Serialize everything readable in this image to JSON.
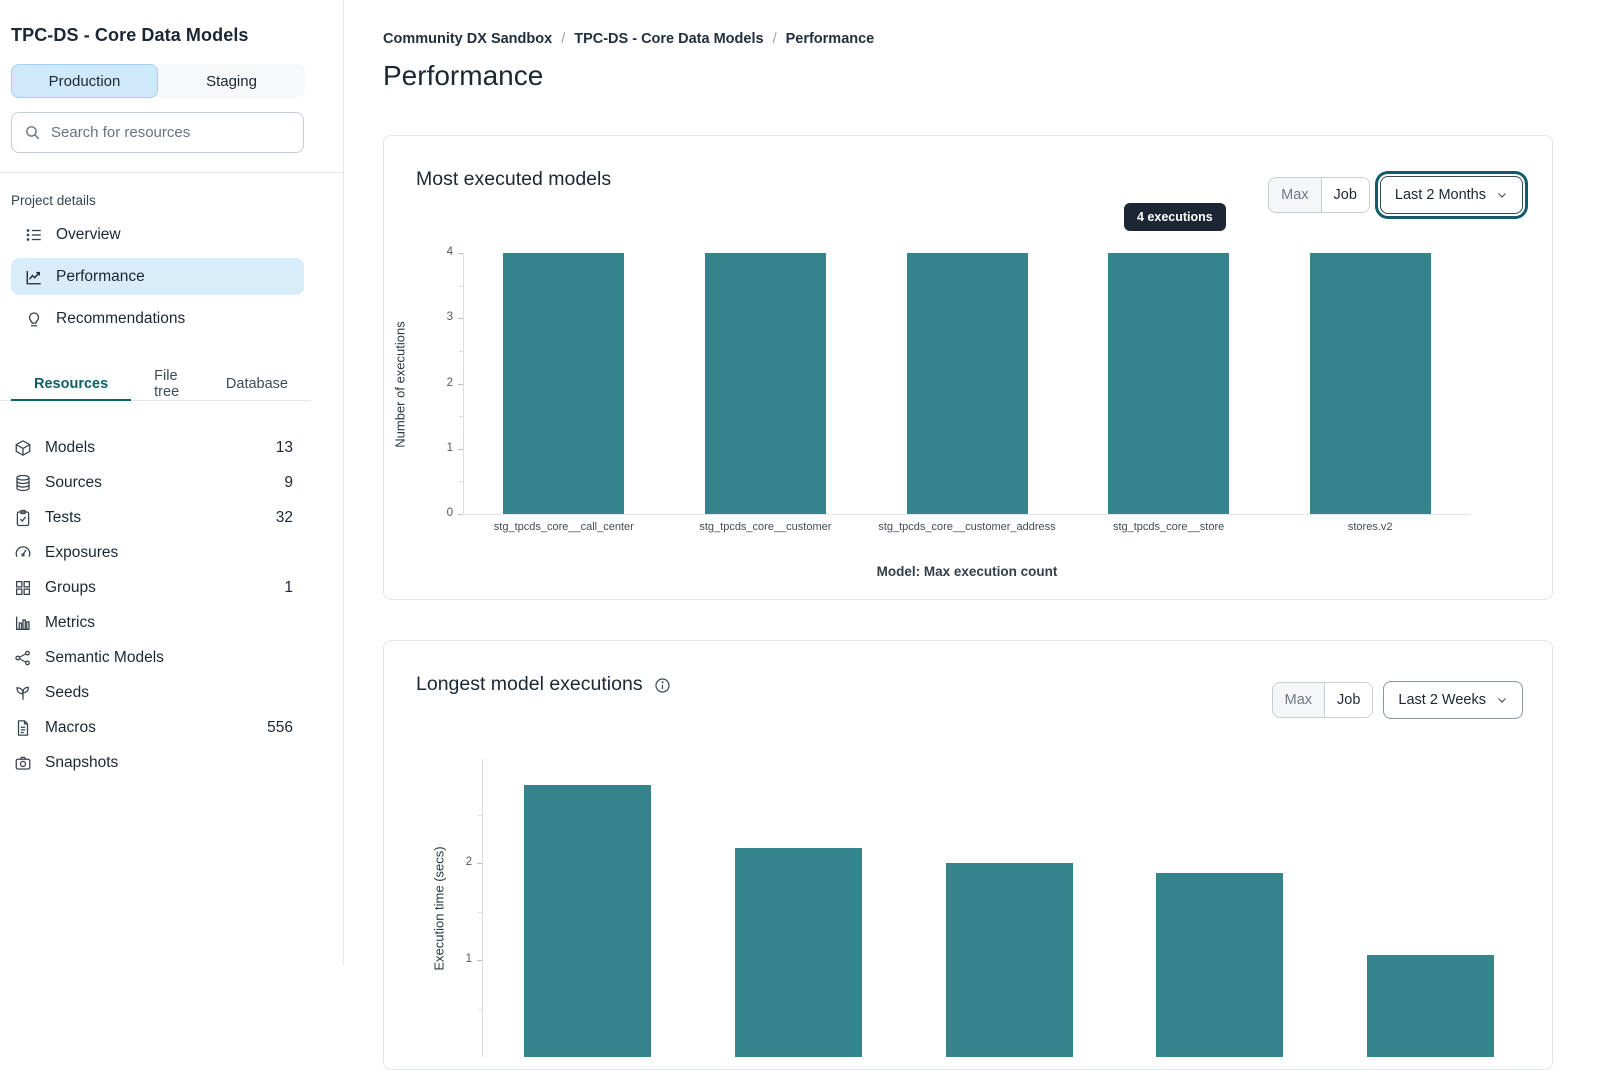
{
  "sidebar": {
    "title": "TPC-DS - Core Data Models",
    "env_tabs": [
      {
        "label": "Production",
        "active": true
      },
      {
        "label": "Staging",
        "active": false
      }
    ],
    "search_placeholder": "Search for resources",
    "section_label": "Project details",
    "nav_items": [
      {
        "label": "Overview",
        "icon": "list-icon",
        "active": false
      },
      {
        "label": "Performance",
        "icon": "chart-line-icon",
        "active": true
      },
      {
        "label": "Recommendations",
        "icon": "lightbulb-icon",
        "active": false
      }
    ],
    "resource_tabs": [
      {
        "label": "Resources",
        "active": true
      },
      {
        "label": "File tree",
        "active": false
      },
      {
        "label": "Database",
        "active": false
      }
    ],
    "resources": [
      {
        "label": "Models",
        "count": "13",
        "icon": "cube-icon"
      },
      {
        "label": "Sources",
        "count": "9",
        "icon": "database-icon"
      },
      {
        "label": "Tests",
        "count": "32",
        "icon": "clipboard-check-icon"
      },
      {
        "label": "Exposures",
        "count": "",
        "icon": "gauge-icon"
      },
      {
        "label": "Groups",
        "count": "1",
        "icon": "grid-icon"
      },
      {
        "label": "Metrics",
        "count": "",
        "icon": "bar-chart-icon"
      },
      {
        "label": "Semantic Models",
        "count": "",
        "icon": "network-icon"
      },
      {
        "label": "Seeds",
        "count": "",
        "icon": "seedling-icon"
      },
      {
        "label": "Macros",
        "count": "556",
        "icon": "file-icon"
      },
      {
        "label": "Snapshots",
        "count": "",
        "icon": "camera-icon"
      }
    ]
  },
  "breadcrumb": {
    "separator": "/",
    "items": [
      "Community DX Sandbox",
      "TPC-DS - Core Data Models",
      "Performance"
    ]
  },
  "page_title": "Performance",
  "colors": {
    "bar": "#35838b",
    "accent_teal": "#0e5d68",
    "active_blue": "#d8ecfa",
    "tooltip_bg": "#1d2634"
  },
  "chart_data": [
    {
      "type": "bar",
      "title": "Most executed models",
      "categories": [
        "stg_tpcds_core__call_center",
        "stg_tpcds_core__customer",
        "stg_tpcds_core__customer_address",
        "stg_tpcds_core__store",
        "stores.v2"
      ],
      "values": [
        4,
        4,
        4,
        4,
        4
      ],
      "xlabel": "Model: Max execution count",
      "ylabel": "Number of executions",
      "ylim": [
        0,
        4
      ],
      "yticks": [
        0,
        1,
        2,
        3,
        4
      ],
      "grid": false,
      "legend": "none",
      "tooltip": "4 executions",
      "controls": {
        "segmented": [
          "Max",
          "Job"
        ],
        "selected": "Job",
        "dropdown": "Last 2 Months",
        "dropdown_focused": true
      }
    },
    {
      "type": "bar",
      "title": "Longest model executions",
      "categories": [
        "",
        "",
        "",
        "",
        ""
      ],
      "values": [
        2.8,
        2.15,
        2.0,
        1.9,
        1.05
      ],
      "xlabel": "",
      "ylabel": "Execution time (secs)",
      "ylim": [
        0,
        3
      ],
      "yticks": [
        1,
        2
      ],
      "grid": false,
      "legend": "none",
      "controls": {
        "segmented": [
          "Max",
          "Job"
        ],
        "selected": "Job",
        "dropdown": "Last 2 Weeks",
        "dropdown_focused": false
      }
    }
  ]
}
